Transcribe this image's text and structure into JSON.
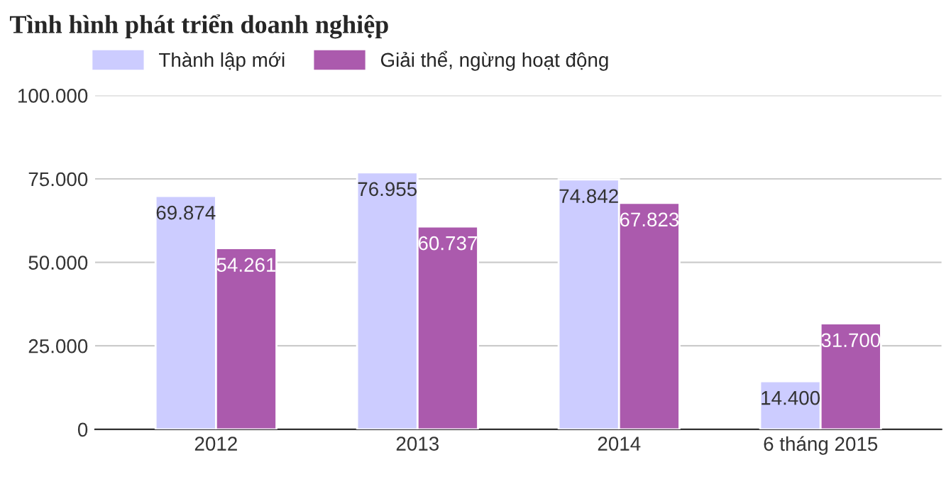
{
  "chart_data": {
    "type": "bar",
    "title": "Tình hình phát triển doanh nghiệp",
    "categories": [
      "2012",
      "2013",
      "2014",
      "6 tháng 2015"
    ],
    "series": [
      {
        "name": "Thành lập mới",
        "color": "#ccccff",
        "values": [
          69874,
          76955,
          74842,
          14400
        ],
        "value_labels": [
          "69.874",
          "76.955",
          "74.842",
          "14.400"
        ]
      },
      {
        "name": "Giải thể, ngừng hoạt động",
        "color": "#ab5aad",
        "values": [
          54261,
          60737,
          67823,
          31700
        ],
        "value_labels": [
          "54.261",
          "60.737",
          "67.823",
          "31.700"
        ]
      }
    ],
    "ylim": [
      0,
      100000
    ],
    "yticks": [
      {
        "value": 0,
        "label": "0"
      },
      {
        "value": 25000,
        "label": "25.000"
      },
      {
        "value": 50000,
        "label": "50.000"
      },
      {
        "value": 75000,
        "label": "75.000"
      },
      {
        "value": 100000,
        "label": "100.000"
      }
    ],
    "grid": "y",
    "legend": "top left"
  }
}
